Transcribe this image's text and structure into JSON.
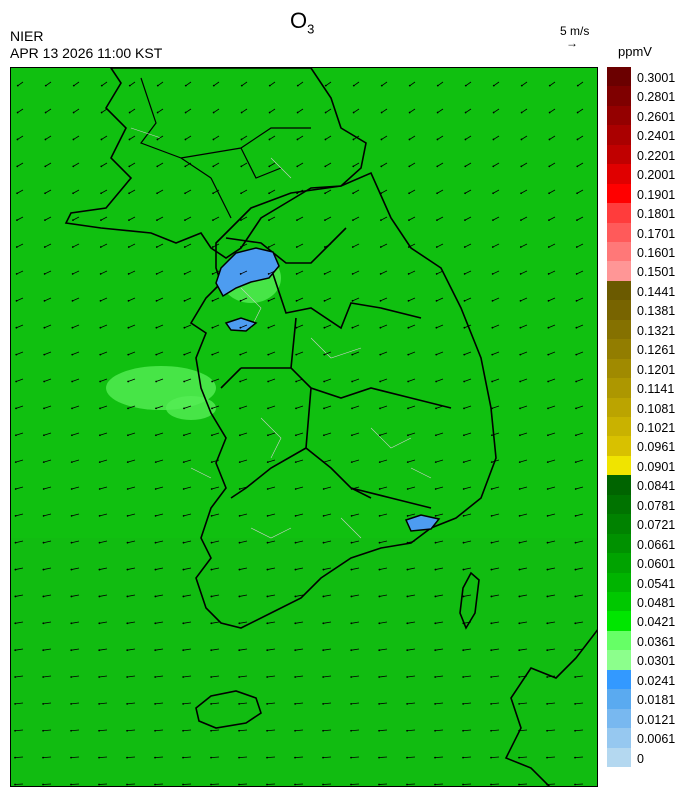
{
  "header": {
    "title_main": "O",
    "title_sub": "3",
    "agency": "NIER",
    "datetime": "APR 13 2026 11:00 KST",
    "ref_speed": "5 m/s",
    "ref_arrow": "→",
    "unit": "ppmV"
  },
  "legend": {
    "labels": [
      "0.3001",
      "0.2801",
      "0.2601",
      "0.2401",
      "0.2201",
      "0.2001",
      "0.1901",
      "0.1801",
      "0.1701",
      "0.1601",
      "0.1501",
      "0.1441",
      "0.1381",
      "0.1321",
      "0.1261",
      "0.1201",
      "0.1141",
      "0.1081",
      "0.1021",
      "0.0961",
      "0.0901",
      "0.0841",
      "0.0781",
      "0.0721",
      "0.0661",
      "0.0601",
      "0.0541",
      "0.0481",
      "0.0421",
      "0.0361",
      "0.0301",
      "0.0241",
      "0.0181",
      "0.0121",
      "0.0061",
      "0"
    ],
    "colors": [
      "#6b0000",
      "#7f0000",
      "#940000",
      "#aa0000",
      "#c00000",
      "#e00000",
      "#ff0000",
      "#ff3c3c",
      "#ff5a5a",
      "#ff7878",
      "#ff9696",
      "#6b5a00",
      "#786400",
      "#857100",
      "#927d00",
      "#a08a00",
      "#ad9700",
      "#bba400",
      "#c9b200",
      "#d8c100",
      "#f0e400",
      "#006400",
      "#007300",
      "#008200",
      "#009100",
      "#00a300",
      "#00b400",
      "#00c800",
      "#00e600",
      "#66ff66",
      "#8cff8c",
      "#3399ff",
      "#5aaaf0",
      "#78b8f0",
      "#96c8f0",
      "#b4d8f0"
    ]
  },
  "map": {
    "background": "#10c010",
    "sea_green": "#12b812",
    "light_green": "#55ee55",
    "blue_area": "#4d9cf0"
  }
}
